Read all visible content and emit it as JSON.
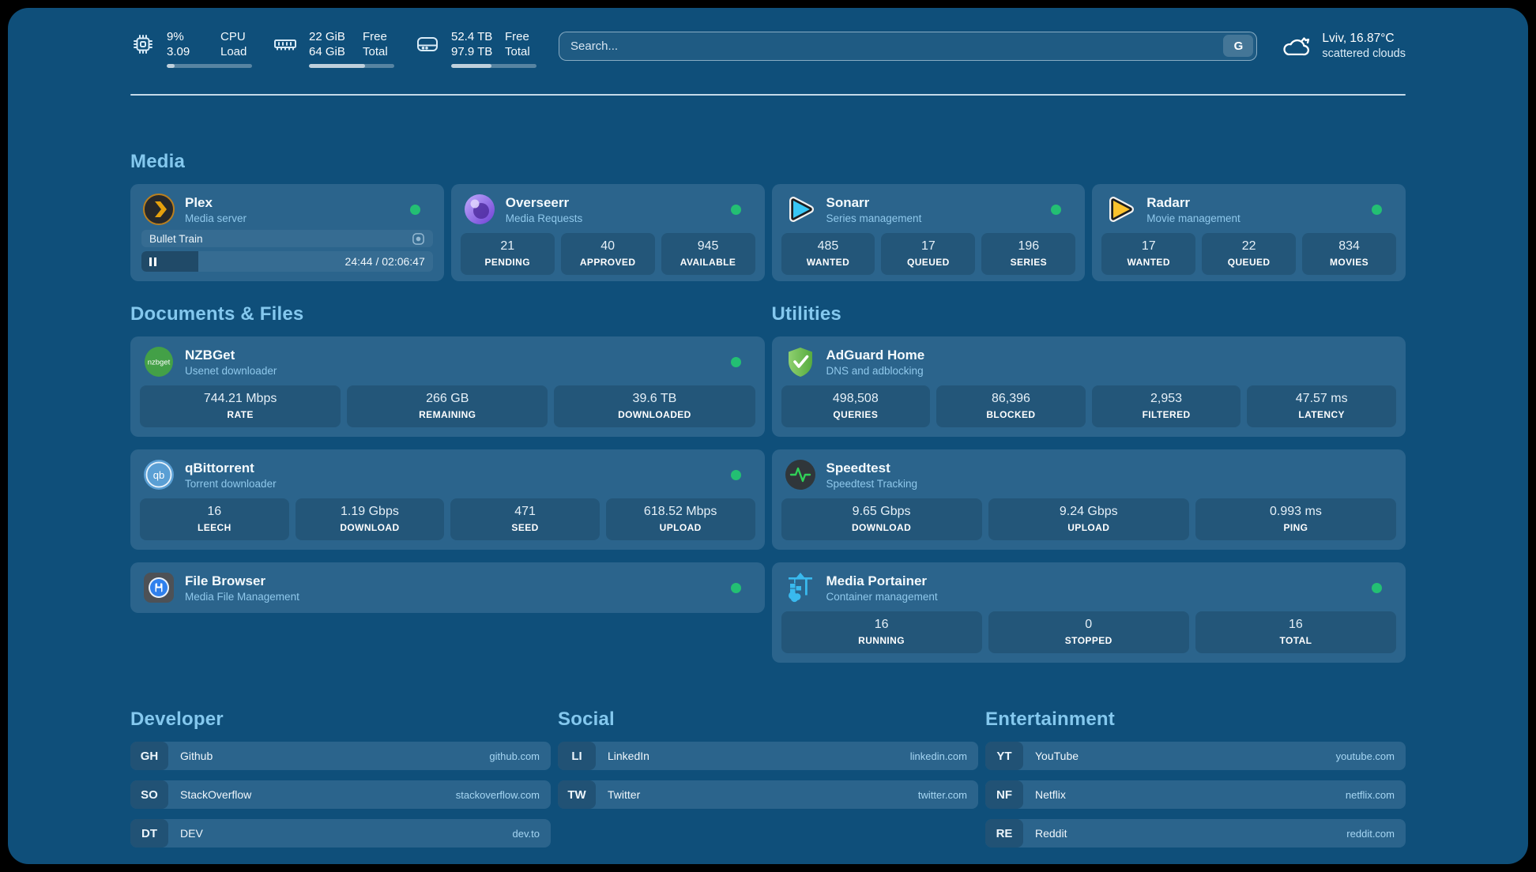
{
  "header": {
    "cpu": {
      "percent": "9%",
      "load": "3.09",
      "label_line1": "CPU",
      "label_line2": "Load",
      "progress": 9
    },
    "memory": {
      "free": "22 GiB",
      "total": "64 GiB",
      "label_line1": "Free",
      "label_line2": "Total",
      "progress": 66
    },
    "disk": {
      "free": "52.4 TB",
      "total": "97.9 TB",
      "label_line1": "Free",
      "label_line2": "Total",
      "progress": 47
    },
    "search": {
      "placeholder": "Search...",
      "engine_button": "G"
    },
    "weather": {
      "location": "Lviv, 16.87°C",
      "condition": "scattered clouds"
    }
  },
  "icons": {
    "nzbget_label": "nzbget",
    "qb_label": "qb"
  },
  "sections": {
    "media": {
      "title": "Media",
      "plex": {
        "title": "Plex",
        "subtitle": "Media server",
        "now_playing": "Bullet Train",
        "time": "24:44 / 02:06:47",
        "progress": 19.5
      },
      "overseerr": {
        "title": "Overseerr",
        "subtitle": "Media Requests",
        "stats": [
          {
            "value": "21",
            "label": "PENDING"
          },
          {
            "value": "40",
            "label": "APPROVED"
          },
          {
            "value": "945",
            "label": "AVAILABLE"
          }
        ]
      },
      "sonarr": {
        "title": "Sonarr",
        "subtitle": "Series management",
        "stats": [
          {
            "value": "485",
            "label": "WANTED"
          },
          {
            "value": "17",
            "label": "QUEUED"
          },
          {
            "value": "196",
            "label": "SERIES"
          }
        ]
      },
      "radarr": {
        "title": "Radarr",
        "subtitle": "Movie management",
        "stats": [
          {
            "value": "17",
            "label": "WANTED"
          },
          {
            "value": "22",
            "label": "QUEUED"
          },
          {
            "value": "834",
            "label": "MOVIES"
          }
        ]
      }
    },
    "documents": {
      "title": "Documents & Files",
      "nzbget": {
        "title": "NZBGet",
        "subtitle": "Usenet downloader",
        "stats": [
          {
            "value": "744.21 Mbps",
            "label": "RATE"
          },
          {
            "value": "266 GB",
            "label": "REMAINING"
          },
          {
            "value": "39.6 TB",
            "label": "DOWNLOADED"
          }
        ]
      },
      "qbittorrent": {
        "title": "qBittorrent",
        "subtitle": "Torrent downloader",
        "stats": [
          {
            "value": "16",
            "label": "LEECH"
          },
          {
            "value": "1.19 Gbps",
            "label": "DOWNLOAD"
          },
          {
            "value": "471",
            "label": "SEED"
          },
          {
            "value": "618.52 Mbps",
            "label": "UPLOAD"
          }
        ]
      },
      "filebrowser": {
        "title": "File Browser",
        "subtitle": "Media File Management"
      }
    },
    "utilities": {
      "title": "Utilities",
      "adguard": {
        "title": "AdGuard Home",
        "subtitle": "DNS and adblocking",
        "stats": [
          {
            "value": "498,508",
            "label": "QUERIES"
          },
          {
            "value": "86,396",
            "label": "BLOCKED"
          },
          {
            "value": "2,953",
            "label": "FILTERED"
          },
          {
            "value": "47.57 ms",
            "label": "LATENCY"
          }
        ]
      },
      "speedtest": {
        "title": "Speedtest",
        "subtitle": "Speedtest Tracking",
        "stats": [
          {
            "value": "9.65 Gbps",
            "label": "DOWNLOAD"
          },
          {
            "value": "9.24 Gbps",
            "label": "UPLOAD"
          },
          {
            "value": "0.993 ms",
            "label": "PING"
          }
        ]
      },
      "portainer": {
        "title": "Media Portainer",
        "subtitle": "Container management",
        "stats": [
          {
            "value": "16",
            "label": "RUNNING"
          },
          {
            "value": "0",
            "label": "STOPPED"
          },
          {
            "value": "16",
            "label": "TOTAL"
          }
        ]
      }
    },
    "bookmarks": {
      "developer": {
        "title": "Developer",
        "items": [
          {
            "abbr": "GH",
            "name": "Github",
            "domain": "github.com"
          },
          {
            "abbr": "SO",
            "name": "StackOverflow",
            "domain": "stackoverflow.com"
          },
          {
            "abbr": "DT",
            "name": "DEV",
            "domain": "dev.to"
          }
        ]
      },
      "social": {
        "title": "Social",
        "items": [
          {
            "abbr": "LI",
            "name": "LinkedIn",
            "domain": "linkedin.com"
          },
          {
            "abbr": "TW",
            "name": "Twitter",
            "domain": "twitter.com"
          }
        ]
      },
      "entertainment": {
        "title": "Entertainment",
        "items": [
          {
            "abbr": "YT",
            "name": "YouTube",
            "domain": "youtube.com"
          },
          {
            "abbr": "NF",
            "name": "Netflix",
            "domain": "netflix.com"
          },
          {
            "abbr": "RE",
            "name": "Reddit",
            "domain": "reddit.com"
          }
        ]
      }
    }
  }
}
